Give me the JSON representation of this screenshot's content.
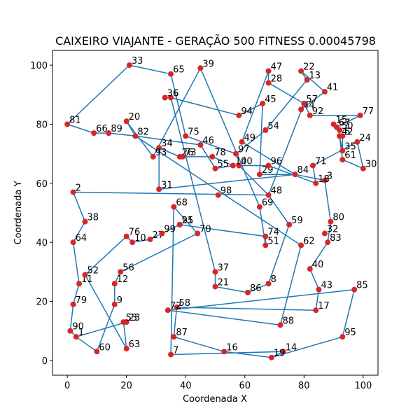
{
  "chart_data": {
    "type": "scatter",
    "title": "CAIXEIRO VIAJANTE - GERAÇÃO 500 FITNESS 0.00045798",
    "xlabel": "Coordenada X",
    "ylabel": "Coordenada Y",
    "xlim": [
      -5,
      105
    ],
    "ylim": [
      -5,
      105
    ],
    "xticks": [
      0,
      20,
      40,
      60,
      80,
      100
    ],
    "yticks": [
      0,
      20,
      40,
      60,
      80,
      100
    ],
    "grid": false,
    "colors": {
      "route": "#1f77b4",
      "point": "#d62728"
    },
    "points": [
      {
        "id": 1,
        "x": 3,
        "y": 8
      },
      {
        "id": 2,
        "x": 2,
        "y": 57
      },
      {
        "id": 3,
        "x": 87,
        "y": 61
      },
      {
        "id": 4,
        "x": 58,
        "y": 66
      },
      {
        "id": 5,
        "x": 93,
        "y": 76
      },
      {
        "id": 6,
        "x": 35,
        "y": 89
      },
      {
        "id": 7,
        "x": 35,
        "y": 2
      },
      {
        "id": 8,
        "x": 68,
        "y": 26
      },
      {
        "id": 9,
        "x": 16,
        "y": 19
      },
      {
        "id": 10,
        "x": 22,
        "y": 40
      },
      {
        "id": 11,
        "x": 4,
        "y": 26
      },
      {
        "id": 12,
        "x": 16,
        "y": 26
      },
      {
        "id": 13,
        "x": 81,
        "y": 95
      },
      {
        "id": 14,
        "x": 73,
        "y": 3
      },
      {
        "id": 15,
        "x": 90,
        "y": 80
      },
      {
        "id": 16,
        "x": 53,
        "y": 3
      },
      {
        "id": 17,
        "x": 84,
        "y": 17
      },
      {
        "id": 18,
        "x": 84,
        "y": 60
      },
      {
        "id": 19,
        "x": 69,
        "y": 1
      },
      {
        "id": 20,
        "x": 20,
        "y": 81
      },
      {
        "id": 21,
        "x": 50,
        "y": 25
      },
      {
        "id": 22,
        "x": 79,
        "y": 98
      },
      {
        "id": 23,
        "x": 20,
        "y": 13
      },
      {
        "id": 24,
        "x": 98,
        "y": 74
      },
      {
        "id": 25,
        "x": 38,
        "y": 46
      },
      {
        "id": 26,
        "x": 38,
        "y": 69
      },
      {
        "id": 27,
        "x": 28,
        "y": 41
      },
      {
        "id": 28,
        "x": 68,
        "y": 94
      },
      {
        "id": 29,
        "x": 65,
        "y": 63
      },
      {
        "id": 30,
        "x": 100,
        "y": 65
      },
      {
        "id": 31,
        "x": 31,
        "y": 58
      },
      {
        "id": 32,
        "x": 87,
        "y": 43
      },
      {
        "id": 33,
        "x": 21,
        "y": 100
      },
      {
        "id": 34,
        "x": 31,
        "y": 72
      },
      {
        "id": 35,
        "x": 93,
        "y": 71
      },
      {
        "id": 36,
        "x": 33,
        "y": 89
      },
      {
        "id": 37,
        "x": 50,
        "y": 30
      },
      {
        "id": 38,
        "x": 6,
        "y": 47
      },
      {
        "id": 39,
        "x": 45,
        "y": 99
      },
      {
        "id": 40,
        "x": 82,
        "y": 31
      },
      {
        "id": 41,
        "x": 87,
        "y": 91
      },
      {
        "id": 42,
        "x": 92,
        "y": 76
      },
      {
        "id": 43,
        "x": 85,
        "y": 24
      },
      {
        "id": 44,
        "x": 79,
        "y": 85
      },
      {
        "id": 45,
        "x": 66,
        "y": 87
      },
      {
        "id": 46,
        "x": 45,
        "y": 73
      },
      {
        "id": 47,
        "x": 68,
        "y": 98
      },
      {
        "id": 48,
        "x": 68,
        "y": 56
      },
      {
        "id": 49,
        "x": 59,
        "y": 74
      },
      {
        "id": 50,
        "x": 92,
        "y": 78
      },
      {
        "id": 51,
        "x": 67,
        "y": 39
      },
      {
        "id": 52,
        "x": 6,
        "y": 29
      },
      {
        "id": 53,
        "x": 19,
        "y": 13
      },
      {
        "id": 54,
        "x": 67,
        "y": 78
      },
      {
        "id": 55,
        "x": 50,
        "y": 65
      },
      {
        "id": 56,
        "x": 18,
        "y": 30
      },
      {
        "id": 57,
        "x": 80,
        "y": 87
      },
      {
        "id": 58,
        "x": 37,
        "y": 18
      },
      {
        "id": 59,
        "x": 75,
        "y": 46
      },
      {
        "id": 60,
        "x": 10,
        "y": 3
      },
      {
        "id": 61,
        "x": 93,
        "y": 68
      },
      {
        "id": 62,
        "x": 79,
        "y": 39
      },
      {
        "id": 63,
        "x": 20,
        "y": 4
      },
      {
        "id": 64,
        "x": 2,
        "y": 40
      },
      {
        "id": 65,
        "x": 35,
        "y": 97
      },
      {
        "id": 66,
        "x": 9,
        "y": 77
      },
      {
        "id": 67,
        "x": 91,
        "y": 79
      },
      {
        "id": 68,
        "x": 36,
        "y": 52
      },
      {
        "id": 69,
        "x": 65,
        "y": 52
      },
      {
        "id": 70,
        "x": 44,
        "y": 43
      },
      {
        "id": 71,
        "x": 83,
        "y": 66
      },
      {
        "id": 72,
        "x": 34,
        "y": 17
      },
      {
        "id": 73,
        "x": 39,
        "y": 69
      },
      {
        "id": 74,
        "x": 67,
        "y": 42
      },
      {
        "id": 75,
        "x": 40,
        "y": 76
      },
      {
        "id": 76,
        "x": 20,
        "y": 42
      },
      {
        "id": 77,
        "x": 99,
        "y": 83
      },
      {
        "id": 78,
        "x": 49,
        "y": 69
      },
      {
        "id": 79,
        "x": 2,
        "y": 19
      },
      {
        "id": 80,
        "x": 89,
        "y": 47
      },
      {
        "id": 81,
        "x": 0,
        "y": 80
      },
      {
        "id": 82,
        "x": 23,
        "y": 76
      },
      {
        "id": 83,
        "x": 88,
        "y": 40
      },
      {
        "id": 84,
        "x": 77,
        "y": 63
      },
      {
        "id": 85,
        "x": 97,
        "y": 24
      },
      {
        "id": 86,
        "x": 61,
        "y": 23
      },
      {
        "id": 87,
        "x": 36,
        "y": 8
      },
      {
        "id": 88,
        "x": 72,
        "y": 12
      },
      {
        "id": 89,
        "x": 14,
        "y": 77
      },
      {
        "id": 90,
        "x": 1,
        "y": 10
      },
      {
        "id": 91,
        "x": 38,
        "y": 46
      },
      {
        "id": 92,
        "x": 82,
        "y": 83
      },
      {
        "id": 93,
        "x": 29,
        "y": 69
      },
      {
        "id": 94,
        "x": 58,
        "y": 83
      },
      {
        "id": 95,
        "x": 93,
        "y": 8
      },
      {
        "id": 96,
        "x": 68,
        "y": 66
      },
      {
        "id": 97,
        "x": 57,
        "y": 70
      },
      {
        "id": 98,
        "x": 51,
        "y": 56
      },
      {
        "id": 99,
        "x": 32,
        "y": 43
      },
      {
        "id": 100,
        "x": 56,
        "y": 66
      }
    ],
    "route": [
      1,
      60,
      9,
      12,
      56,
      70,
      68,
      7,
      14,
      19,
      16,
      87,
      58,
      17,
      43,
      40,
      83,
      80,
      3,
      84,
      29,
      45,
      94,
      6,
      36,
      6,
      37,
      21,
      86,
      8,
      59,
      48,
      4,
      96,
      18,
      71,
      24,
      30,
      61,
      42,
      35,
      5,
      42,
      50,
      15,
      67,
      77,
      92,
      57,
      44,
      41,
      22,
      13,
      54,
      97,
      75,
      65,
      33,
      81,
      66,
      89,
      82,
      46,
      55,
      100,
      78,
      73,
      26,
      34,
      31,
      84,
      49,
      47,
      28,
      57,
      48,
      2,
      38,
      64,
      11,
      79,
      90,
      1,
      23,
      53,
      63,
      52,
      76,
      10,
      27,
      99,
      25,
      91,
      74,
      51,
      69,
      39,
      93,
      20,
      82,
      62,
      88,
      72,
      85,
      95,
      19
    ]
  }
}
